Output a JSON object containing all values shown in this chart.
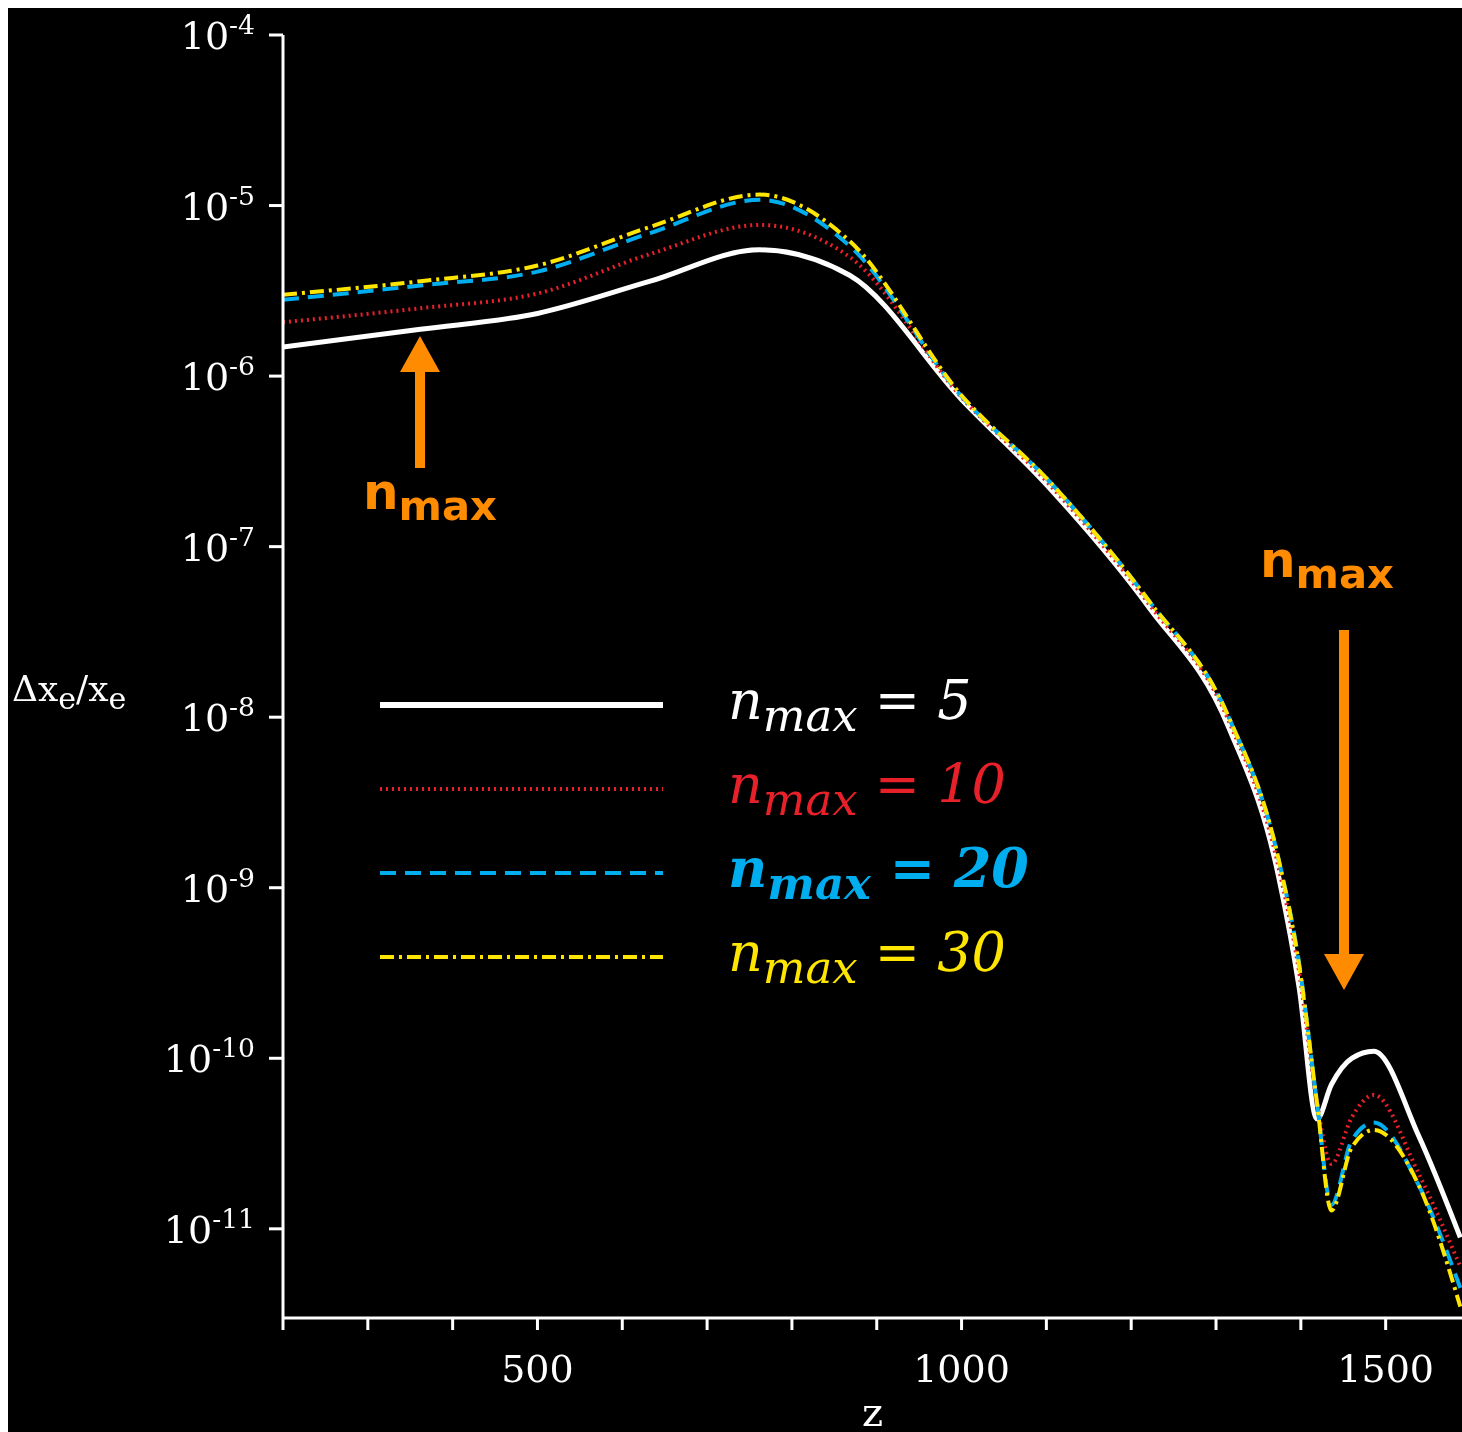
{
  "chart_data": {
    "type": "line",
    "xlabel": "z",
    "ylabel": "Δx$_{e}$/x$_{e}$",
    "x": [
      200,
      362,
      500,
      633,
      762,
      868,
      1000,
      1104,
      1221,
      1315,
      1374,
      1398,
      1419,
      1436,
      1460,
      1486,
      1539,
      1588
    ],
    "series": [
      {
        "name": "n$_{max}$ = 5",
        "color": "#ffffff",
        "line_style": "solid",
        "values": [
          1.48e-06,
          1.88e-06,
          2.33e-06,
          3.6e-06,
          5.5e-06,
          3.9e-06,
          7.3e-07,
          2.2e-07,
          4.4e-08,
          8.7e-09,
          1.15e-09,
          2.6e-10,
          4.4e-11,
          7e-11,
          1e-10,
          1.1e-10,
          3.5e-11,
          8.9e-12
        ]
      },
      {
        "name": "n$_{max}$ = 10",
        "color": "#e8202a",
        "line_style": "dotted",
        "values": [
          2.07e-06,
          2.5e-06,
          3.05e-06,
          5.2e-06,
          7.7e-06,
          5e-06,
          7.5e-07,
          2.3e-07,
          4.6e-08,
          9.5e-09,
          1.3e-09,
          3.2e-10,
          5.5e-11,
          2.4e-11,
          4.5e-11,
          6.1e-11,
          2.1e-11,
          6e-12
        ]
      },
      {
        "name": "n$_{max}$ = 20",
        "color": "#00aeef",
        "line_style": "dashed",
        "values": [
          2.8e-06,
          3.4e-06,
          4.1e-06,
          6.9e-06,
          1.08e-05,
          5.8e-06,
          7.6e-07,
          2.4e-07,
          4.8e-08,
          1e-08,
          1.45e-09,
          3.6e-10,
          5.5e-11,
          1.38e-11,
          3.3e-11,
          4.2e-11,
          1.8e-11,
          4.5e-12
        ]
      },
      {
        "name": "n$_{max}$ = 30",
        "color": "#ffe600",
        "line_style": "dashdot",
        "values": [
          3e-06,
          3.6e-06,
          4.45e-06,
          7.5e-06,
          1.16e-05,
          6.2e-06,
          7.7e-07,
          2.4e-07,
          4.8e-08,
          1e-08,
          1.45e-09,
          3.5e-10,
          5.5e-11,
          1.28e-11,
          3e-11,
          3.8e-11,
          1.8e-11,
          3.5e-12
        ]
      }
    ],
    "xlim": [
      200,
      1590
    ],
    "xticks": [
      {
        "value": 200,
        "label": null
      },
      {
        "value": 300,
        "label": null
      },
      {
        "value": 400,
        "label": null
      },
      500,
      {
        "value": 600,
        "label": null
      },
      {
        "value": 700,
        "label": null
      },
      {
        "value": 800,
        "label": null
      },
      {
        "value": 900,
        "label": null
      },
      1000,
      {
        "value": 1100,
        "label": null
      },
      {
        "value": 1200,
        "label": null
      },
      {
        "value": 1300,
        "label": null
      },
      {
        "value": 1400,
        "label": null
      },
      1500
    ],
    "ylim": [
      3e-12,
      0.0001
    ],
    "yticks": [
      {
        "value": 1e-11,
        "label": "10$^{-11}$"
      },
      {
        "value": 1e-10,
        "label": "10$^{-10}$"
      },
      {
        "value": 1e-09,
        "label": "10$^{-9}$"
      },
      {
        "value": 1e-08,
        "label": "10$^{-8}$"
      },
      {
        "value": 1e-07,
        "label": "10$^{-7}$"
      },
      {
        "value": 1e-06,
        "label": "10$^{-6}$"
      },
      {
        "value": 1e-05,
        "label": "10$^{-5}$"
      },
      {
        "value": 0.0001,
        "label": "10$^{-4}$"
      }
    ],
    "log": "y",
    "legend": "left",
    "marker": "none",
    "annotations": [
      "n$_{max}$",
      "n$_{max}$"
    ]
  }
}
